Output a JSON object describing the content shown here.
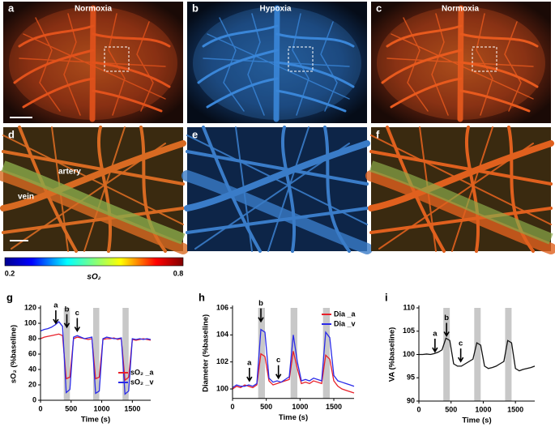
{
  "image_panels": [
    {
      "letter": "a",
      "title": "Normoxia"
    },
    {
      "letter": "b",
      "title": "Hypoxia"
    },
    {
      "letter": "c",
      "title": "Normoxia"
    },
    {
      "letter": "d",
      "annotations": [
        "artery",
        "vein"
      ]
    },
    {
      "letter": "e"
    },
    {
      "letter": "f"
    }
  ],
  "colorbar": {
    "range": [
      0.2,
      0.8
    ],
    "label": "sO₂"
  },
  "chart_data": [
    {
      "type": "line",
      "panel_label": "g",
      "ylabel": "sO₂ (%baseline)",
      "xlabel": "Time (s)",
      "x": [
        0,
        60,
        120,
        180,
        240,
        300,
        360,
        420,
        480,
        540,
        600,
        660,
        720,
        780,
        840,
        900,
        960,
        1020,
        1080,
        1140,
        1200,
        1260,
        1320,
        1380,
        1440,
        1500,
        1560,
        1620,
        1680,
        1740,
        1800
      ],
      "series": [
        {
          "name": "sO₂ _a",
          "color": "#e8202a",
          "values": [
            80,
            82,
            83,
            84,
            85,
            86,
            84,
            28,
            30,
            80,
            82,
            81,
            80,
            79,
            80,
            28,
            30,
            79,
            80,
            80,
            81,
            79,
            80,
            26,
            30,
            79,
            78,
            79,
            80,
            79,
            78
          ]
        },
        {
          "name": "sO₂ _v",
          "color": "#2a2ae8",
          "values": [
            90,
            92,
            93,
            95,
            98,
            102,
            96,
            10,
            14,
            82,
            84,
            82,
            80,
            81,
            82,
            9,
            12,
            80,
            82,
            81,
            80,
            80,
            81,
            8,
            12,
            80,
            79,
            80,
            79,
            80,
            79
          ]
        }
      ],
      "xlim": [
        0,
        1800
      ],
      "xticks": [
        0,
        500,
        1000,
        1500
      ],
      "ylim": [
        0,
        120
      ],
      "yticks": [
        0,
        20,
        40,
        60,
        80,
        100,
        120
      ],
      "shaded_intervals": [
        [
          380,
          480
        ],
        [
          860,
          960
        ],
        [
          1340,
          1440
        ]
      ],
      "annotations": [
        {
          "x": 250,
          "y": 100,
          "text": "a"
        },
        {
          "x": 430,
          "y": 95,
          "text": "b"
        },
        {
          "x": 600,
          "y": 90,
          "text": "c"
        }
      ],
      "legend": "lower right"
    },
    {
      "type": "line",
      "panel_label": "h",
      "ylabel": "Diameter (%baseline)",
      "xlabel": "Time (s)",
      "x": [
        0,
        60,
        120,
        180,
        240,
        300,
        360,
        420,
        480,
        540,
        600,
        660,
        720,
        780,
        840,
        900,
        960,
        1020,
        1080,
        1140,
        1200,
        1260,
        1320,
        1380,
        1440,
        1500,
        1560,
        1620,
        1680,
        1740,
        1800
      ],
      "series": [
        {
          "name": "Dia _a",
          "color": "#e8202a",
          "values": [
            100.0,
            100.2,
            100.1,
            100.3,
            100.2,
            100.1,
            100.3,
            102.6,
            102.4,
            100.6,
            100.3,
            100.4,
            100.5,
            100.6,
            100.7,
            102.8,
            101.5,
            100.4,
            100.5,
            100.4,
            100.6,
            100.5,
            100.4,
            102.5,
            102.2,
            100.6,
            100.2,
            100.0,
            99.9,
            99.8,
            99.7
          ]
        },
        {
          "name": "Dia _v",
          "color": "#2a2ae8",
          "values": [
            100.1,
            100.3,
            100.2,
            100.2,
            100.3,
            100.2,
            100.4,
            104.4,
            104.2,
            100.8,
            100.5,
            100.6,
            100.5,
            100.7,
            100.9,
            104.0,
            102.0,
            100.6,
            100.7,
            100.6,
            100.8,
            100.7,
            100.6,
            104.2,
            103.8,
            101.0,
            100.6,
            100.5,
            100.4,
            100.3,
            100.2
          ]
        }
      ],
      "xlim": [
        0,
        1800
      ],
      "xticks": [
        0,
        500,
        1000,
        1500
      ],
      "ylim": [
        99.3,
        106
      ],
      "yticks": [
        100,
        102,
        104,
        106
      ],
      "shaded_intervals": [
        [
          380,
          480
        ],
        [
          860,
          960
        ],
        [
          1340,
          1440
        ]
      ],
      "annotations": [
        {
          "x": 250,
          "y": 100.6,
          "text": "a"
        },
        {
          "x": 420,
          "y": 105,
          "text": "b"
        },
        {
          "x": 680,
          "y": 100.8,
          "text": "c"
        }
      ],
      "legend": "upper right"
    },
    {
      "type": "line",
      "panel_label": "i",
      "ylabel": "VA (%baseline)",
      "xlabel": "Time (s)",
      "x": [
        0,
        60,
        120,
        180,
        240,
        300,
        360,
        420,
        480,
        540,
        600,
        660,
        720,
        780,
        840,
        900,
        960,
        1020,
        1080,
        1140,
        1200,
        1260,
        1320,
        1380,
        1440,
        1500,
        1560,
        1620,
        1680,
        1740,
        1800
      ],
      "series": [
        {
          "color": "#111111",
          "values": [
            100,
            100,
            100.1,
            100,
            100.2,
            100.5,
            101,
            103.5,
            103,
            98,
            97.5,
            97.5,
            98,
            98.5,
            99,
            102.5,
            102,
            97.5,
            97,
            97.2,
            97.5,
            98,
            98.5,
            103,
            102.5,
            97,
            96.5,
            96.8,
            97,
            97.2,
            97.5
          ]
        }
      ],
      "xlim": [
        0,
        1800
      ],
      "xticks": [
        0,
        500,
        1000,
        1500
      ],
      "ylim": [
        90,
        110
      ],
      "yticks": [
        90,
        95,
        100,
        105,
        110
      ],
      "shaded_intervals": [
        [
          380,
          480
        ],
        [
          860,
          960
        ],
        [
          1340,
          1440
        ]
      ],
      "annotations": [
        {
          "x": 250,
          "y": 100.6,
          "text": "a"
        },
        {
          "x": 430,
          "y": 104,
          "text": "b"
        },
        {
          "x": 650,
          "y": 98.5,
          "text": "c"
        }
      ]
    }
  ]
}
